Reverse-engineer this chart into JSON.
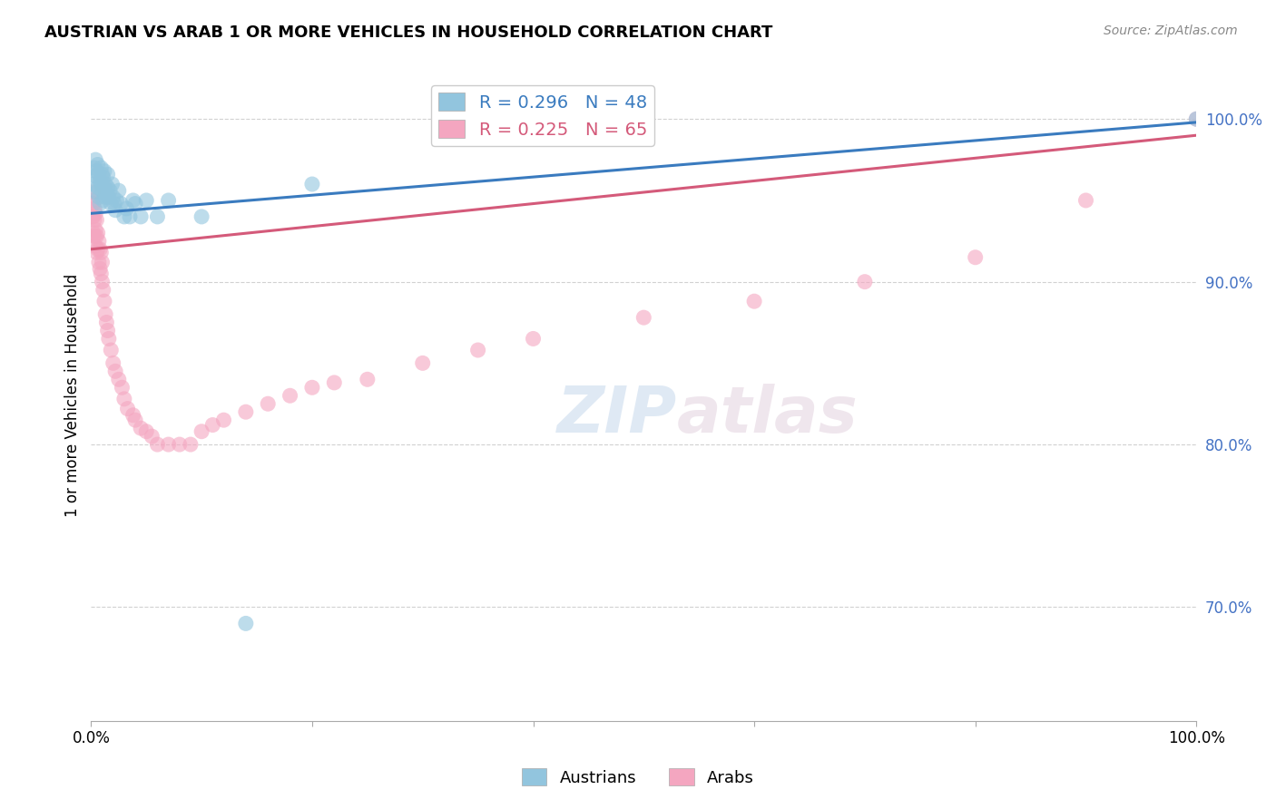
{
  "title": "AUSTRIAN VS ARAB 1 OR MORE VEHICLES IN HOUSEHOLD CORRELATION CHART",
  "source": "Source: ZipAtlas.com",
  "ylabel": "1 or more Vehicles in Household",
  "legend_austrians": "Austrians",
  "legend_arabs": "Arabs",
  "austrian_R": 0.296,
  "austrian_N": 48,
  "arab_R": 0.225,
  "arab_N": 65,
  "austrian_color": "#92c5de",
  "arab_color": "#f4a6c0",
  "austrian_line_color": "#3a7bbf",
  "arab_line_color": "#d45a7a",
  "ytick_color": "#4472c4",
  "watermark_color_zip": "#c8d8ea",
  "watermark_color_atlas": "#d8c8d8",
  "austrian_x": [
    0.002,
    0.003,
    0.004,
    0.004,
    0.005,
    0.005,
    0.006,
    0.006,
    0.007,
    0.007,
    0.008,
    0.008,
    0.009,
    0.009,
    0.01,
    0.01,
    0.011,
    0.011,
    0.012,
    0.012,
    0.013,
    0.013,
    0.014,
    0.015,
    0.015,
    0.016,
    0.017,
    0.018,
    0.019,
    0.02,
    0.021,
    0.022,
    0.023,
    0.025,
    0.027,
    0.03,
    0.032,
    0.035,
    0.038,
    0.04,
    0.045,
    0.05,
    0.06,
    0.07,
    0.1,
    0.14,
    0.2,
    1.0
  ],
  "austrian_y": [
    0.96,
    0.97,
    0.965,
    0.975,
    0.955,
    0.968,
    0.958,
    0.972,
    0.952,
    0.966,
    0.948,
    0.962,
    0.96,
    0.97,
    0.956,
    0.966,
    0.95,
    0.964,
    0.958,
    0.968,
    0.952,
    0.96,
    0.954,
    0.958,
    0.966,
    0.952,
    0.956,
    0.948,
    0.96,
    0.952,
    0.948,
    0.944,
    0.95,
    0.956,
    0.948,
    0.94,
    0.945,
    0.94,
    0.95,
    0.948,
    0.94,
    0.95,
    0.94,
    0.95,
    0.94,
    0.69,
    0.96,
    1.0
  ],
  "arab_x": [
    0.001,
    0.001,
    0.002,
    0.002,
    0.002,
    0.002,
    0.003,
    0.003,
    0.003,
    0.004,
    0.004,
    0.004,
    0.005,
    0.005,
    0.005,
    0.006,
    0.006,
    0.007,
    0.007,
    0.008,
    0.008,
    0.009,
    0.009,
    0.01,
    0.01,
    0.011,
    0.012,
    0.013,
    0.014,
    0.015,
    0.016,
    0.018,
    0.02,
    0.022,
    0.025,
    0.028,
    0.03,
    0.033,
    0.038,
    0.04,
    0.045,
    0.05,
    0.055,
    0.06,
    0.07,
    0.08,
    0.09,
    0.1,
    0.11,
    0.12,
    0.14,
    0.16,
    0.18,
    0.2,
    0.22,
    0.25,
    0.3,
    0.35,
    0.4,
    0.5,
    0.6,
    0.7,
    0.8,
    0.9,
    1.0
  ],
  "arab_y": [
    0.94,
    0.95,
    0.93,
    0.94,
    0.948,
    0.955,
    0.928,
    0.938,
    0.945,
    0.922,
    0.932,
    0.942,
    0.918,
    0.928,
    0.938,
    0.92,
    0.93,
    0.912,
    0.925,
    0.908,
    0.92,
    0.905,
    0.918,
    0.9,
    0.912,
    0.895,
    0.888,
    0.88,
    0.875,
    0.87,
    0.865,
    0.858,
    0.85,
    0.845,
    0.84,
    0.835,
    0.828,
    0.822,
    0.818,
    0.815,
    0.81,
    0.808,
    0.805,
    0.8,
    0.8,
    0.8,
    0.8,
    0.808,
    0.812,
    0.815,
    0.82,
    0.825,
    0.83,
    0.835,
    0.838,
    0.84,
    0.85,
    0.858,
    0.865,
    0.878,
    0.888,
    0.9,
    0.915,
    0.95,
    1.0
  ],
  "xlim": [
    0.0,
    1.0
  ],
  "ylim": [
    0.63,
    1.03
  ],
  "aus_line_x0": 0.0,
  "aus_line_x1": 1.0,
  "aus_line_y0": 0.942,
  "aus_line_y1": 0.998,
  "arab_line_x0": 0.0,
  "arab_line_x1": 1.0,
  "arab_line_y0": 0.92,
  "arab_line_y1": 0.99
}
